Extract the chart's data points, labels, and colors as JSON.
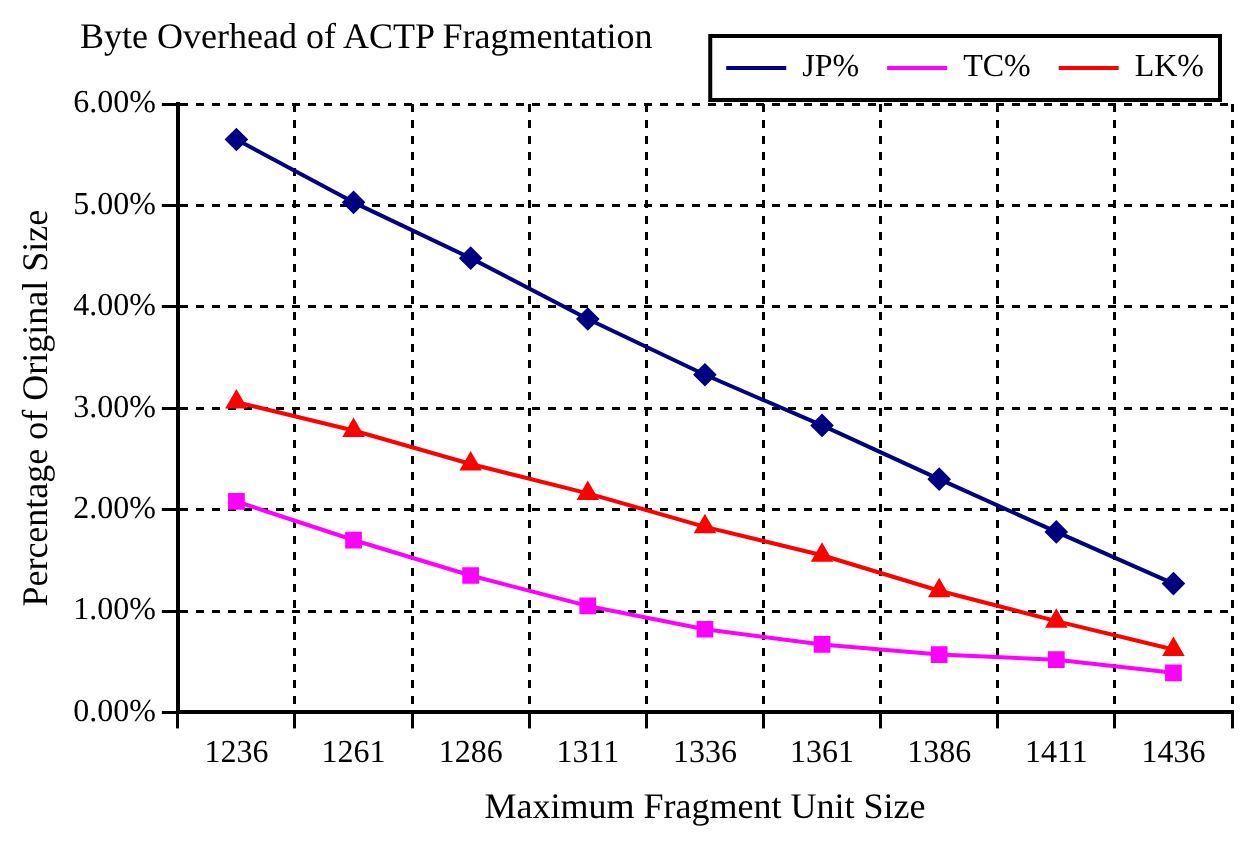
{
  "chart_data": {
    "type": "line",
    "title": "Byte Overhead of ACTP Fragmentation",
    "xlabel": "Maximum Fragment Unit Size",
    "ylabel": "Percentage of Original Size",
    "categories": [
      "1236",
      "1261",
      "1286",
      "1311",
      "1336",
      "1361",
      "1386",
      "1411",
      "1436"
    ],
    "series": [
      {
        "name": "JP%",
        "color": "#000080",
        "marker": "diamond",
        "values": [
          5.65,
          5.03,
          4.48,
          3.88,
          3.33,
          2.83,
          2.3,
          1.78,
          1.27
        ]
      },
      {
        "name": "TC%",
        "color": "#ff00ff",
        "marker": "square",
        "values": [
          2.08,
          1.7,
          1.35,
          1.05,
          0.82,
          0.67,
          0.57,
          0.52,
          0.39
        ]
      },
      {
        "name": "LK%",
        "color": "#ff0000",
        "marker": "triangle",
        "values": [
          3.06,
          2.78,
          2.45,
          2.16,
          1.83,
          1.55,
          1.2,
          0.9,
          0.62
        ]
      }
    ],
    "ylim": [
      0,
      6
    ],
    "yticks": [
      {
        "value": 0,
        "label": "0.00%"
      },
      {
        "value": 1,
        "label": "1.00%"
      },
      {
        "value": 2,
        "label": "2.00%"
      },
      {
        "value": 3,
        "label": "3.00%"
      },
      {
        "value": 4,
        "label": "4.00%"
      },
      {
        "value": 5,
        "label": "5.00%"
      },
      {
        "value": 6,
        "label": "6.00%"
      }
    ],
    "grid": true,
    "legend": "top right",
    "line_style": "solid"
  }
}
